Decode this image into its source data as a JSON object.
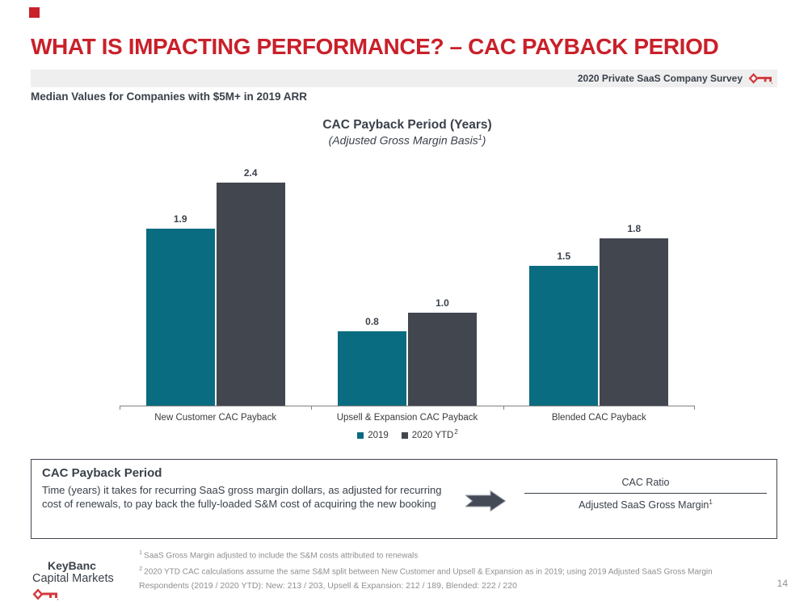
{
  "slide": {
    "title": "WHAT IS IMPACTING PERFORMANCE? – CAC PAYBACK PERIOD",
    "banner_text": "2020 Private SaaS Company Survey",
    "subtitle": "Median Values for Companies with $5M+ in 2019 ARR",
    "page_number": "14"
  },
  "chart_data": {
    "type": "bar",
    "title": "CAC Payback Period (Years)",
    "subtitle_prefix": "(Adjusted Gross Margin Basis",
    "subtitle_sup": "1",
    "subtitle_suffix": ")",
    "categories": [
      "New Customer CAC Payback",
      "Upsell & Expansion CAC Payback",
      "Blended CAC Payback"
    ],
    "series": [
      {
        "name": "2019",
        "color": "#0a6c80",
        "values": [
          1.9,
          0.8,
          1.5
        ]
      },
      {
        "name": "2020 YTD",
        "name_sup": "2",
        "color": "#41464f",
        "values": [
          2.4,
          1.0,
          1.8
        ]
      }
    ],
    "ylabel": "",
    "xlabel": "",
    "ylim": [
      0,
      2.6
    ],
    "grid": false,
    "legend_position": "bottom",
    "value_label_format": "0.0"
  },
  "definition_box": {
    "heading": "CAC Payback Period",
    "body": "Time (years) it takes for recurring SaaS gross margin dollars, as adjusted for recurring cost of renewals, to pay back the fully-loaded S&M cost of acquiring the new booking",
    "formula_numerator": "CAC Ratio",
    "formula_denominator": "Adjusted SaaS Gross Margin",
    "formula_denominator_sup": "1"
  },
  "footnotes": {
    "fn1": {
      "marker": "1",
      "text": "SaaS Gross Margin adjusted to include the S&M costs attributed to renewals"
    },
    "fn2": {
      "marker": "2",
      "text": "2020 YTD CAC calculations assume the same S&M split between New Customer and Upsell & Expansion as in 2019; using 2019 Adjusted SaaS Gross Margin"
    },
    "respondents": "Respondents (2019 / 2020 YTD): New: 213 / 203, Upsell & Expansion: 212 / 189, Blended: 222 / 220"
  },
  "logo": {
    "line1": "KeyBanc",
    "line2": "Capital Markets"
  },
  "colors": {
    "brand_red": "#c9202a",
    "key_red": "#d2383c",
    "teal_2019": "#0a6c80",
    "slate_2020": "#41464f",
    "banner_bg": "#efefef",
    "text_dark": "#3a414b",
    "footnote_gray": "#8f8f8f"
  }
}
